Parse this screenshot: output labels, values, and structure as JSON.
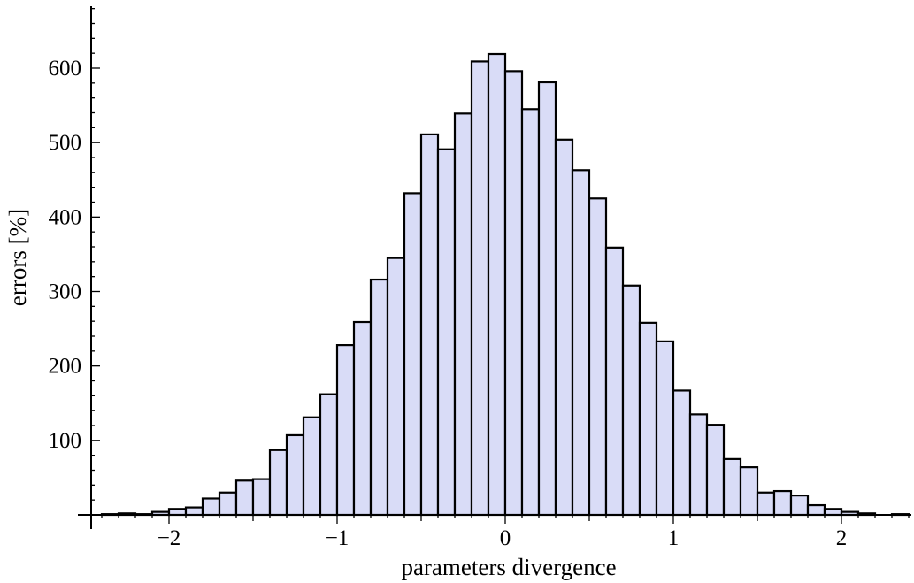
{
  "chart_data": {
    "type": "bar",
    "title": "",
    "xlabel": "parameters divergence",
    "ylabel": "errors [%]",
    "xlim": [
      -2.5,
      2.43
    ],
    "ylim": [
      0,
      680
    ],
    "grid": false,
    "legend": "none",
    "bin_width": 0.1,
    "x_ticks": [
      {
        "value": -2,
        "label": "−2"
      },
      {
        "value": -1,
        "label": "−1"
      },
      {
        "value": 0,
        "label": "0"
      },
      {
        "value": 1,
        "label": "1"
      },
      {
        "value": 2,
        "label": "2"
      }
    ],
    "y_ticks": [
      {
        "value": 100,
        "label": "100"
      },
      {
        "value": 200,
        "label": "200"
      },
      {
        "value": 300,
        "label": "300"
      },
      {
        "value": 400,
        "label": "400"
      },
      {
        "value": 500,
        "label": "500"
      },
      {
        "value": 600,
        "label": "600"
      }
    ],
    "bin_left_edges": [
      -2.4,
      -2.3,
      -2.2,
      -2.1,
      -2.0,
      -1.9,
      -1.8,
      -1.7,
      -1.6,
      -1.5,
      -1.4,
      -1.3,
      -1.2,
      -1.1,
      -1.0,
      -0.9,
      -0.8,
      -0.7,
      -0.6,
      -0.5,
      -0.4,
      -0.3,
      -0.2,
      -0.1,
      0.0,
      0.1,
      0.2,
      0.3,
      0.4,
      0.5,
      0.6,
      0.7,
      0.8,
      0.9,
      1.0,
      1.1,
      1.2,
      1.3,
      1.4,
      1.5,
      1.6,
      1.7,
      1.8,
      1.9,
      2.0,
      2.1,
      2.2,
      2.3
    ],
    "values": [
      1,
      2,
      1,
      4,
      8,
      10,
      22,
      30,
      46,
      48,
      87,
      107,
      131,
      162,
      228,
      259,
      316,
      345,
      432,
      511,
      491,
      539,
      609,
      619,
      596,
      545,
      581,
      504,
      463,
      425,
      359,
      308,
      258,
      233,
      167,
      135,
      121,
      75,
      64,
      30,
      32,
      26,
      13,
      8,
      4,
      2,
      0,
      1
    ],
    "bar_fill": "#d9dcf7",
    "bar_stroke": "#000000"
  }
}
